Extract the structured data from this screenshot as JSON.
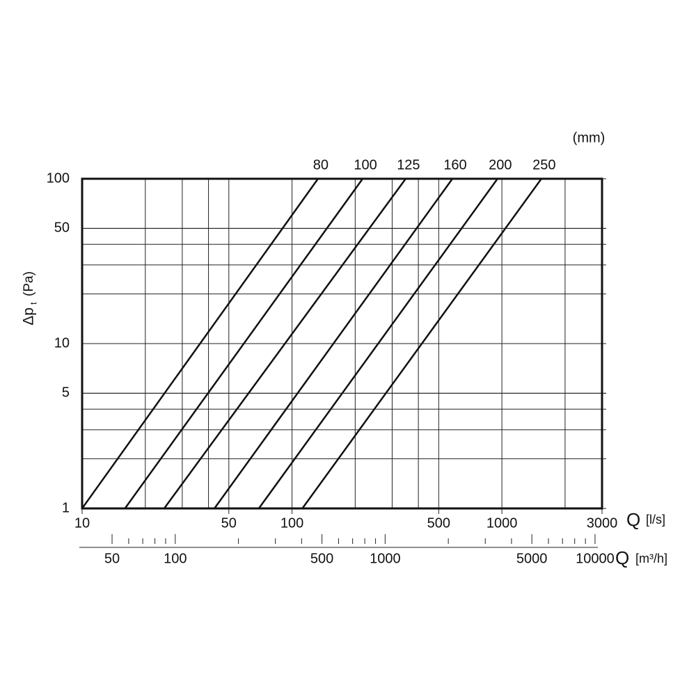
{
  "chart_data": {
    "type": "line",
    "unit_label": "(mm)",
    "y_label": "Δp",
    "y_label_sub": "t",
    "y_label_unit": "(Pa)",
    "x_label": "Q",
    "x_unit": "[l/s]",
    "x2_label": "Q",
    "x2_unit": "[m³/h]",
    "log_x": true,
    "log_y": true,
    "xlim": [
      10,
      3000
    ],
    "ylim": [
      1,
      100
    ],
    "xticks": [
      10,
      50,
      100,
      500,
      1000,
      3000
    ],
    "yticks": [
      1,
      5,
      10,
      50,
      100
    ],
    "xgrid": [
      20,
      30,
      40,
      50,
      100,
      200,
      300,
      400,
      500,
      1000,
      2000
    ],
    "ygrid": [
      2,
      3,
      4,
      5,
      20,
      30,
      40,
      50
    ],
    "x2lim": [
      36,
      10800
    ],
    "x2ticks": [
      50,
      100,
      500,
      1000,
      5000,
      10000
    ],
    "x2minor": [
      60,
      70,
      80,
      90,
      200,
      300,
      400,
      600,
      700,
      800,
      900,
      2000,
      3000,
      4000,
      6000,
      7000,
      8000,
      9000
    ],
    "series": [
      {
        "name": "80",
        "color": "#111111",
        "x": [
          10,
          133
        ],
        "values": [
          1,
          100
        ]
      },
      {
        "name": "100",
        "color": "#111111",
        "x": [
          16,
          217
        ],
        "values": [
          1,
          100
        ]
      },
      {
        "name": "125",
        "color": "#111111",
        "x": [
          24.6,
          348
        ],
        "values": [
          1,
          100
        ]
      },
      {
        "name": "160",
        "color": "#111111",
        "x": [
          42.7,
          581
        ],
        "values": [
          1,
          100
        ]
      },
      {
        "name": "200",
        "color": "#111111",
        "x": [
          69.5,
          953
        ],
        "values": [
          1,
          100
        ]
      },
      {
        "name": "250",
        "color": "#111111",
        "x": [
          112,
          1542
        ],
        "values": [
          1,
          100
        ]
      }
    ]
  }
}
